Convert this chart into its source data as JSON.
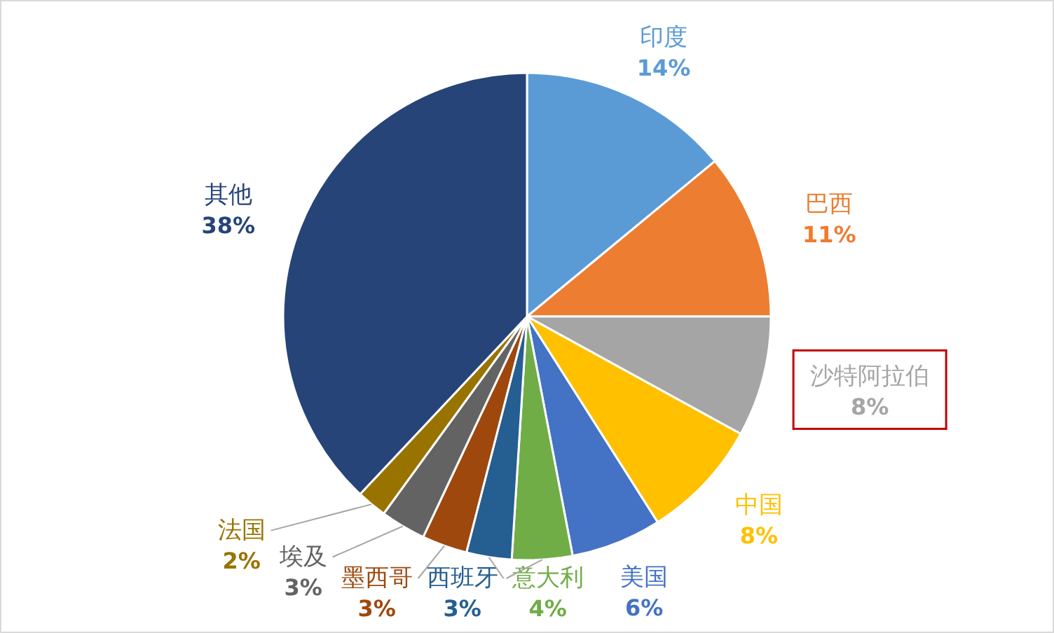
{
  "chart_data": {
    "type": "pie",
    "categories": [
      "印度",
      "巴西",
      "沙特阿拉伯",
      "中国",
      "美国",
      "意大利",
      "西班牙",
      "墨西哥",
      "埃及",
      "法国",
      "其他"
    ],
    "values": [
      14,
      11,
      8,
      8,
      6,
      4,
      3,
      3,
      3,
      2,
      38
    ],
    "value_labels": [
      "14%",
      "11%",
      "8%",
      "8%",
      "6%",
      "4%",
      "3%",
      "3%",
      "3%",
      "2%",
      "38%"
    ],
    "colors": [
      "#5b9bd5",
      "#ed7d31",
      "#a5a5a5",
      "#ffc000",
      "#4472c4",
      "#70ad47",
      "#255e91",
      "#9e480e",
      "#636363",
      "#997300",
      "#264478"
    ]
  }
}
